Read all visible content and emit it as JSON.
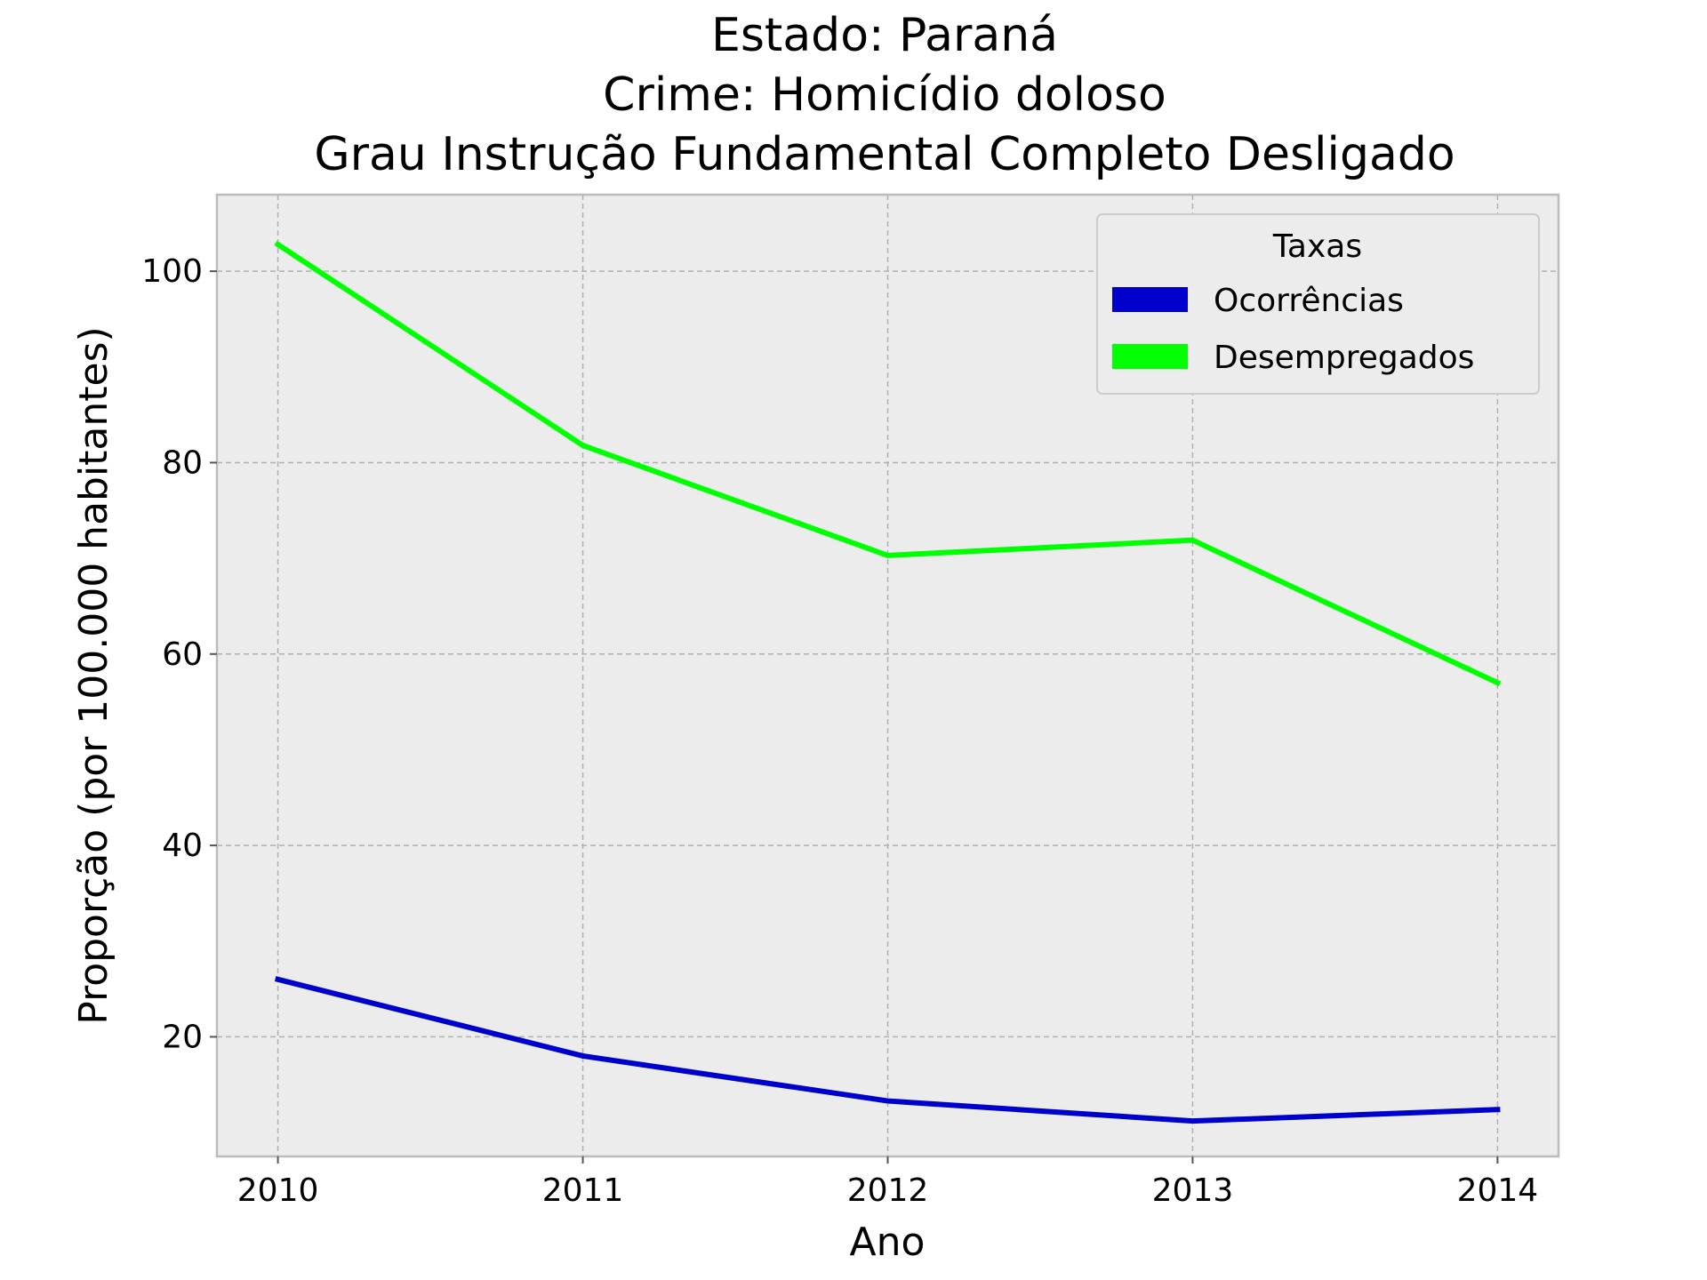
{
  "chart_data": {
    "type": "line",
    "title_lines": [
      "Estado: Paraná",
      "Crime: Homicídio doloso",
      "Grau Instrução  Fundamental Completo   Desligado"
    ],
    "xlabel": "Ano",
    "ylabel": "Proporção (por 100.000 habitantes)",
    "x": [
      2010,
      2011,
      2012,
      2013,
      2014
    ],
    "x_tick_labels": [
      "2010",
      "2011",
      "2012",
      "2013",
      "2014"
    ],
    "xlim": [
      2009.8,
      2014.2
    ],
    "ylim": [
      7.5,
      108
    ],
    "y_ticks": [
      20,
      40,
      60,
      80,
      100
    ],
    "y_tick_labels": [
      "20",
      "40",
      "60",
      "80",
      "100"
    ],
    "grid": true,
    "legend": {
      "title": "Taxas",
      "placement": "top-right"
    },
    "series": [
      {
        "name": "Ocorrências",
        "color": "#0000cc",
        "values": [
          26.0,
          18.0,
          13.3,
          11.2,
          12.4
        ]
      },
      {
        "name": "Desempregados",
        "color": "#00ff00",
        "values": [
          102.8,
          81.8,
          70.3,
          71.9,
          57.0
        ]
      }
    ],
    "colors": {
      "plot_background": "#ececec",
      "grid": "#b0b0b0",
      "frame": "#bcbcbc"
    }
  }
}
